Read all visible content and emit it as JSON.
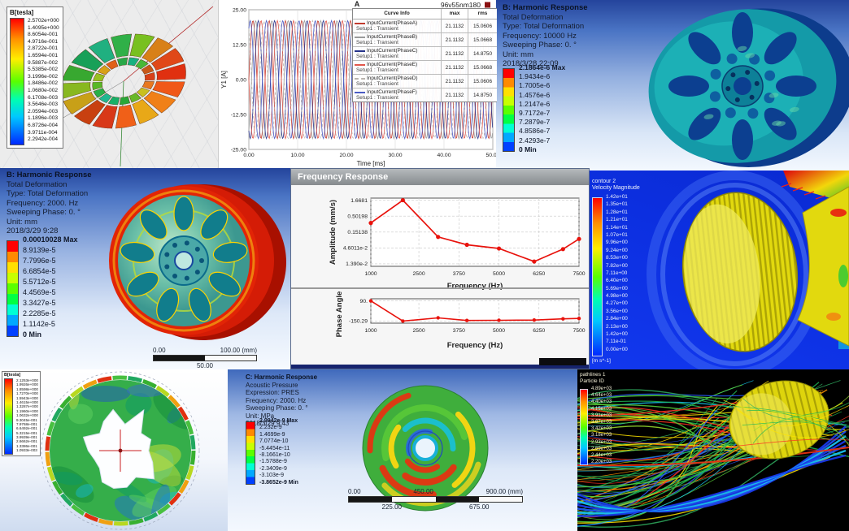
{
  "panels": {
    "maxwell_top": {
      "legend_title": "B[tesla]",
      "legend_values": [
        "2.5702e+000",
        "1.4095e+000",
        "8.6054e-001",
        "4.9716e-001",
        "2.8722e-001",
        "1.6594e-001",
        "9.5887e-002",
        "5.5385e-002",
        "3.1996e-002",
        "1.8486e-002",
        "1.0680e-002",
        "6.1708e-003",
        "3.5646e-003",
        "2.0594e-003",
        "1.1896e-003",
        "6.8726e-004",
        "3.9711e-004",
        "2.2942e-004"
      ]
    },
    "harmonic_10000": {
      "header": [
        "B: Harmonic Response",
        "Total Deformation",
        "Type: Total Deformation",
        "Frequency: 10000 Hz",
        "Sweeping Phase: 0. °",
        "Unit: mm",
        "2018/3/28 22:09"
      ],
      "legend": [
        "2.1864e-6 Max",
        "1.9434e-6",
        "1.7005e-6",
        "1.4576e-6",
        "1.2147e-6",
        "9.7172e-7",
        "7.2879e-7",
        "4.8586e-7",
        "2.4293e-7",
        "0 Min"
      ]
    },
    "harmonic_2000": {
      "header": [
        "B: Harmonic Response",
        "Total Deformation",
        "Type: Total Deformation",
        "Frequency: 2000. Hz",
        "Sweeping Phase: 0. °",
        "Unit: mm",
        "2018/3/29 9:28"
      ],
      "legend": [
        "0.00010028 Max",
        "8.9139e-5",
        "7.7996e-5",
        "6.6854e-5",
        "5.5712e-5",
        "4.4569e-5",
        "3.3427e-5",
        "2.2285e-5",
        "1.1142e-5",
        "0 Min"
      ],
      "ruler": {
        "start": "0.00",
        "end": "100.00 (mm)",
        "mid": "50.00"
      }
    },
    "freq_response": {
      "window_title": "Frequency Response"
    },
    "velocity_contour": {
      "legend_title_lines": [
        "contour 2",
        "Velocity Magnitude"
      ],
      "values": [
        "1.42e+01",
        "1.35e+01",
        "1.28e+01",
        "1.21e+01",
        "1.14e+01",
        "1.07e+01",
        "9.96e+00",
        "9.24e+00",
        "8.53e+00",
        "7.82e+00",
        "7.11e+00",
        "6.40e+00",
        "5.69e+00",
        "4.98e+00",
        "4.27e+00",
        "3.56e+00",
        "2.84e+00",
        "2.13e+00",
        "1.42e+00",
        "7.11e-01",
        "0.00e+00"
      ],
      "unit": "[m s^-1]"
    },
    "maxwell_bottom": {
      "legend_title": "B[tesla]",
      "legend_values": [
        "2.1253e+000",
        "1.9926e+000",
        "1.8598e+000",
        "1.7270e+000",
        "1.5943e+000",
        "1.4615e+000",
        "1.3287e+000",
        "1.1960e+000",
        "1.0632e+000",
        "9.3045e-001",
        "7.9768e-001",
        "6.6492e-001",
        "5.3215e-001",
        "3.9939e-001",
        "2.6662e-001",
        "1.3386e-001",
        "1.0933e-003"
      ]
    },
    "acoustic": {
      "header": [
        "C: Harmonic Response",
        "Acoustic Pressure",
        "Expression: PRES",
        "Frequency: 2000. Hz",
        "Sweeping Phase: 0. °",
        "Unit: MPa",
        "2018/3/29 9:43"
      ],
      "legend": [
        "2.9942e-9 Max",
        "2.232e-9",
        "1.4699e-9",
        "7.0774e-10",
        "-5.4454e-11",
        "-8.1661e-10",
        "-1.5788e-9",
        "-2.3409e-9",
        "-3.103e-9",
        "-3.8652e-9 Min"
      ],
      "ruler": {
        "start": "0.00",
        "mid": "450.00",
        "end": "900.00 (mm)",
        "q1": "225.00",
        "q3": "675.00"
      }
    },
    "streamlines": {
      "legend_title_lines": [
        "pathlines 1",
        "Particle ID"
      ],
      "values": [
        "4.89e+03",
        "4.64e+03",
        "4.40e+03",
        "4.15e+03",
        "3.91e+03",
        "3.67e+03",
        "3.42e+03",
        "3.18e+03",
        "2.93e+03",
        "2.69e+03",
        "2.44e+03",
        "2.20e+03"
      ]
    }
  },
  "colors": {
    "curve_red": "#e8120c",
    "cfd_background": "#0c2fe0",
    "streamline_background": "#000000",
    "gear_yellow": "#e2d90e",
    "flywheel_teal": "#149aa8",
    "flywheel_red": "#d41c06"
  },
  "chart_data": [
    {
      "id": "currents",
      "type": "line",
      "title": "A",
      "corner_label": "96v55nm180",
      "xlabel": "Time [ms]",
      "ylabel": "Y1 [A]",
      "xlim": [
        0,
        50
      ],
      "ylim": [
        -25,
        25
      ],
      "xtick_labels": [
        "0.00",
        "10.00",
        "20.00",
        "30.00",
        "40.00",
        "50.00"
      ],
      "ytick_labels": [
        "25.00",
        "12.50",
        "0.00",
        "-12.50",
        "-25.00"
      ],
      "legend_headers": [
        "Curve Info",
        "max",
        "rms"
      ],
      "waveform": {
        "amplitude": 21.1132,
        "period_ms": 3.3333
      },
      "series": [
        {
          "name": "InputCurrent(PhaseA)",
          "setup": "Setup1 : Transient",
          "max": "21.1132",
          "rms": "15.0606",
          "color": "#c23b2e",
          "dash": false,
          "phase_deg": 0
        },
        {
          "name": "InputCurrent(PhaseB)",
          "setup": "Setup1 : Transient",
          "max": "21.1132",
          "rms": "15.0668",
          "color": "#9b9b9b",
          "dash": false,
          "phase_deg": -60
        },
        {
          "name": "InputCurrent(PhaseC)",
          "setup": "Setup1 : Transient",
          "max": "21.1132",
          "rms": "14.8750",
          "color": "#27348b",
          "dash": false,
          "phase_deg": -120
        },
        {
          "name": "InputCurrent(PhaseE)",
          "setup": "Setup1 : Transient",
          "max": "21.1132",
          "rms": "15.0668",
          "color": "#e2574c",
          "dash": false,
          "phase_deg": -180
        },
        {
          "name": "InputCurrent(PhaseD)",
          "setup": "Setup1 : Transient",
          "max": "21.1132",
          "rms": "15.0606",
          "color": "#b9b4ae",
          "dash": true,
          "phase_deg": -240
        },
        {
          "name": "InputCurrent(PhaseF)",
          "setup": "Setup1 : Transient",
          "max": "21.1132",
          "rms": "14.8750",
          "color": "#4a5bc4",
          "dash": false,
          "phase_deg": -300
        }
      ],
      "legend_position": "upper right",
      "grid": true
    },
    {
      "id": "freq_amplitude",
      "type": "line",
      "ylabel": "Amplitude (mm/s)",
      "xlabel": "Frequency (Hz)",
      "yscale": "log",
      "x": [
        1000,
        2000,
        3100,
        4000,
        5000,
        6100,
        7000,
        7500
      ],
      "y": [
        0.3,
        1.6681,
        0.105,
        0.058,
        0.044,
        0.0165,
        0.042,
        0.09
      ],
      "xtick_labels": [
        "1000",
        "2500",
        "3750",
        "5000",
        "6250",
        "7500"
      ],
      "xtick_values": [
        1000,
        2500,
        3750,
        5000,
        6250,
        7500
      ],
      "ytick_labels": [
        "1.6681",
        "0.50198",
        "0.15138",
        "4.6011e-2",
        "1.390e-2"
      ],
      "ytick_values": [
        1.6681,
        0.50198,
        0.15138,
        0.046011,
        0.0139
      ],
      "xlim": [
        1000,
        7500
      ],
      "ylim_log": [
        0.0115,
        1.95
      ],
      "color": "#e8120c",
      "grid": true
    },
    {
      "id": "freq_phase",
      "type": "line",
      "ylabel": "Phase Angle",
      "xlabel": "Frequency (Hz)",
      "x": [
        1000,
        2000,
        3100,
        4000,
        5000,
        6100,
        7000,
        7500
      ],
      "y": [
        90,
        -150.29,
        -112,
        -143,
        -141,
        -138,
        -124,
        -119
      ],
      "xtick_labels": [
        "1000",
        "2500",
        "3750",
        "5000",
        "6250",
        "7500"
      ],
      "xtick_values": [
        1000,
        2500,
        3750,
        5000,
        6250,
        7500
      ],
      "ytick_labels": [
        "90.",
        "-150.29"
      ],
      "ytick_values": [
        90,
        -150.29
      ],
      "xlim": [
        1000,
        7500
      ],
      "ylim": [
        -175,
        115
      ],
      "color": "#e8120c",
      "grid": true
    }
  ]
}
